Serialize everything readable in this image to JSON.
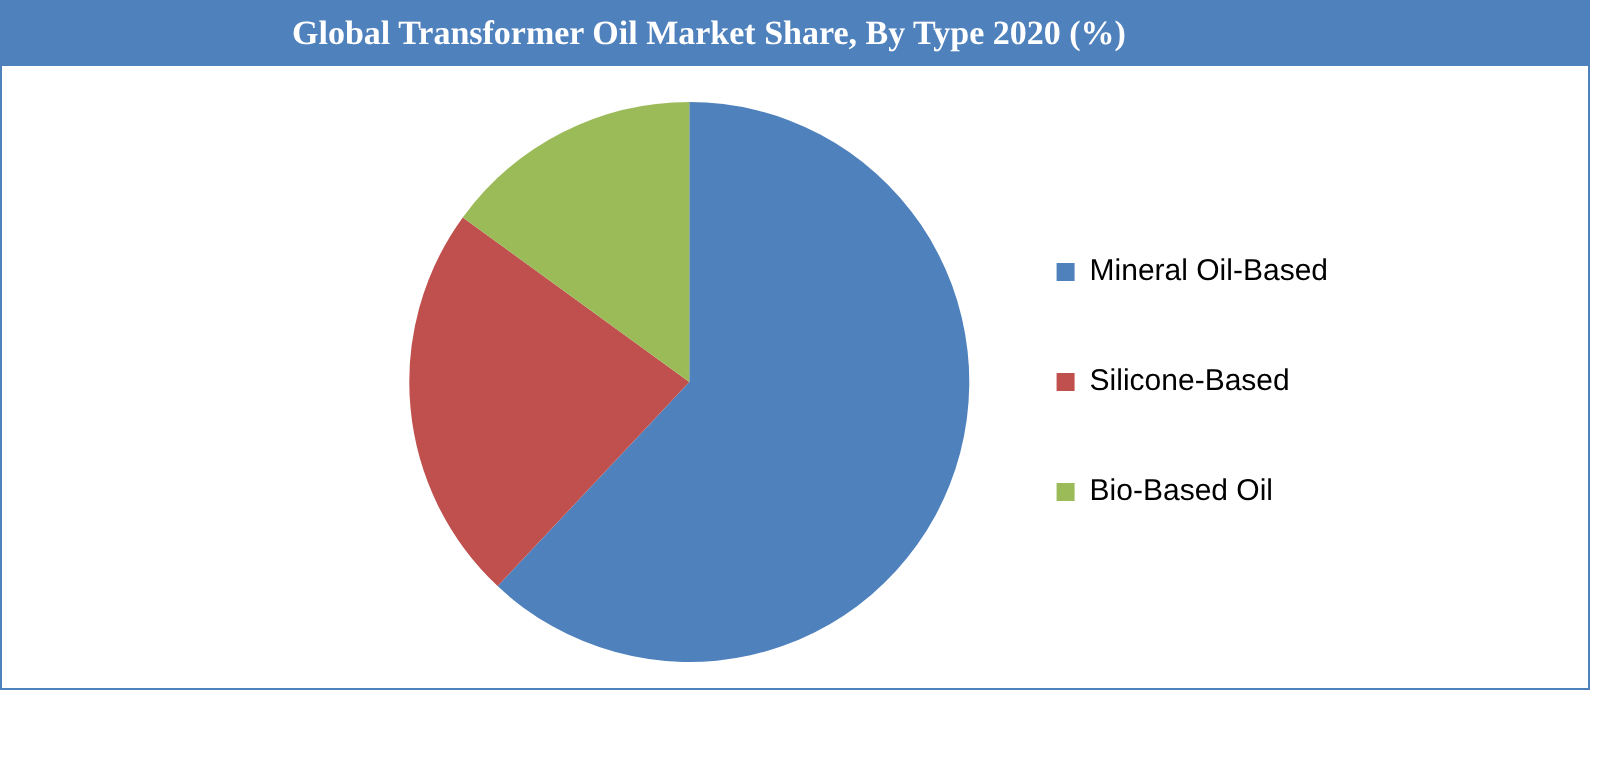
{
  "chart_data": {
    "type": "pie",
    "title": "Global Transformer Oil Market Share, By Type 2020 (%)",
    "categories": [
      "Mineral Oil-Based",
      "Silicone-Based",
      "Bio-Based Oil"
    ],
    "values": [
      62,
      23,
      15
    ],
    "colors": [
      "#4f81bd",
      "#c0504d",
      "#9bbb59"
    ],
    "legend": "right"
  }
}
